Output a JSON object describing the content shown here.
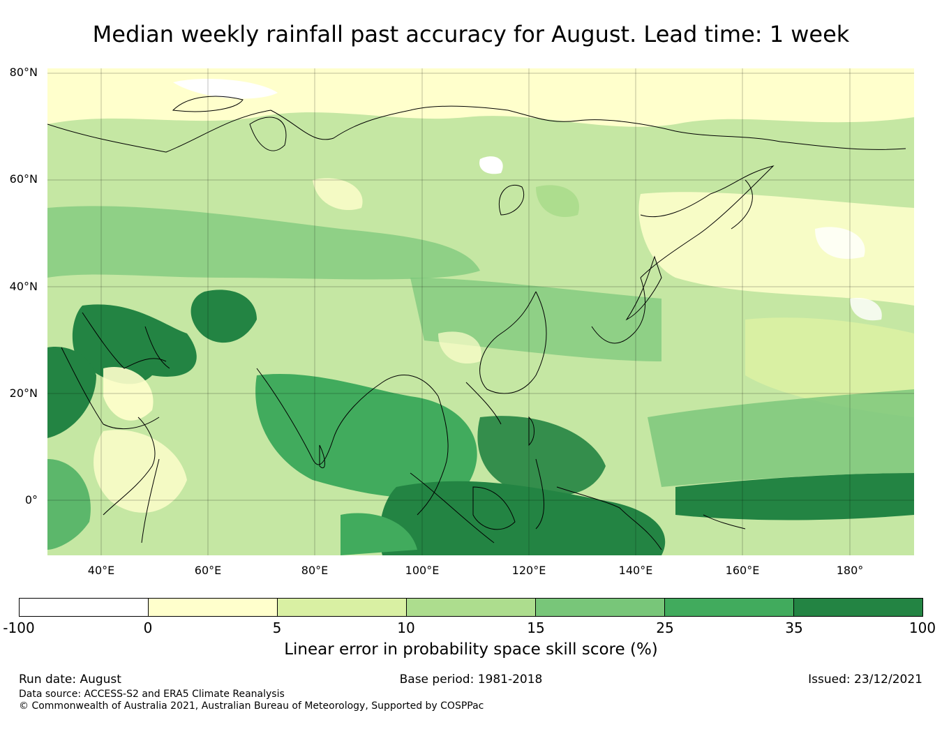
{
  "title": "Median weekly rainfall past accuracy for August. Lead time: 1 week",
  "map": {
    "latitude_labels": [
      "80°N",
      "60°N",
      "40°N",
      "20°N",
      "0°"
    ],
    "longitude_labels": [
      "40°E",
      "60°E",
      "80°E",
      "100°E",
      "120°E",
      "140°E",
      "160°E",
      "180°"
    ],
    "extent": {
      "lon_min": 30,
      "lon_max": 192,
      "lat_min": -11,
      "lat_max": 80.7
    }
  },
  "colorbar": {
    "label": "Linear error in probability space skill score (%)",
    "ticks": [
      "-100",
      "0",
      "5",
      "10",
      "15",
      "25",
      "35",
      "100"
    ],
    "colors": [
      "#ffffff",
      "#ffffcc",
      "#d9f0a3",
      "#addd8e",
      "#78c679",
      "#41ab5d",
      "#238443"
    ]
  },
  "footer": {
    "run_date": "Run date: August",
    "base_period": "Base period: 1981-2018",
    "issued": "Issued: 23/12/2021",
    "data_source": "Data source: ACCESS-S2 and ERA5 Climate Reanalysis",
    "copyright": "© Commonwealth of Australia 2021, Australian Bureau of Meteorology, Supported by COSPPac"
  }
}
